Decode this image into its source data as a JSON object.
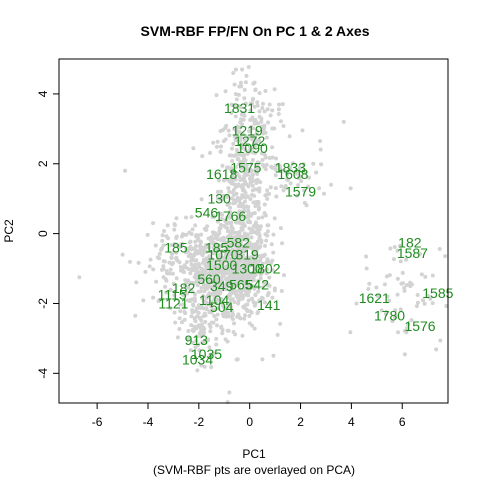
{
  "chart_data": {
    "type": "scatter",
    "title": "SVM-RBF FP/FN On PC 1 & 2 Axes",
    "xlabel": "PC1",
    "subtitle": "(SVM-RBF pts are overlayed on PCA)",
    "ylabel": "PC2",
    "xlim": [
      -7.5,
      7.8
    ],
    "ylim": [
      -4.85,
      5.0
    ],
    "xticks": [
      -6,
      -4,
      -2,
      0,
      2,
      4,
      6
    ],
    "yticks": [
      -4,
      -2,
      0,
      2,
      4
    ],
    "colors": {
      "background_points": "#d3d3d3",
      "labels": "#1e8c1e"
    },
    "labeled_points": [
      {
        "label": "1831",
        "x": -0.4,
        "y": 3.6
      },
      {
        "label": "1219",
        "x": -0.1,
        "y": 2.95
      },
      {
        "label": "1272",
        "x": 0.0,
        "y": 2.65
      },
      {
        "label": "1090",
        "x": 0.1,
        "y": 2.45
      },
      {
        "label": "1575",
        "x": -0.15,
        "y": 1.9
      },
      {
        "label": "1618",
        "x": -1.1,
        "y": 1.7
      },
      {
        "label": "1833",
        "x": 1.6,
        "y": 1.9
      },
      {
        "label": "1608",
        "x": 1.7,
        "y": 1.7
      },
      {
        "label": "1579",
        "x": 2.0,
        "y": 1.2
      },
      {
        "label": "130",
        "x": -1.2,
        "y": 1.0
      },
      {
        "label": "546",
        "x": -1.7,
        "y": 0.6
      },
      {
        "label": "1766",
        "x": -0.75,
        "y": 0.5
      },
      {
        "label": "582",
        "x": -0.45,
        "y": -0.25
      },
      {
        "label": "185",
        "x": -2.9,
        "y": -0.4
      },
      {
        "label": "185",
        "x": -1.3,
        "y": -0.4
      },
      {
        "label": "1070",
        "x": -1.05,
        "y": -0.6
      },
      {
        "label": "319",
        "x": -0.1,
        "y": -0.6
      },
      {
        "label": "1500",
        "x": -1.1,
        "y": -0.9
      },
      {
        "label": "1300",
        "x": -0.1,
        "y": -1.0
      },
      {
        "label": "1802",
        "x": 0.6,
        "y": -1.0
      },
      {
        "label": "560",
        "x": -1.6,
        "y": -1.3
      },
      {
        "label": "349",
        "x": -1.1,
        "y": -1.5
      },
      {
        "label": "565",
        "x": -0.35,
        "y": -1.45
      },
      {
        "label": "542",
        "x": 0.3,
        "y": -1.45
      },
      {
        "label": "182",
        "x": -2.6,
        "y": -1.55
      },
      {
        "label": "1115",
        "x": -3.05,
        "y": -1.75
      },
      {
        "label": "1121",
        "x": -3.0,
        "y": -2.0
      },
      {
        "label": "1104",
        "x": -1.4,
        "y": -1.9
      },
      {
        "label": "504",
        "x": -1.1,
        "y": -2.1
      },
      {
        "label": "141",
        "x": 0.75,
        "y": -2.05
      },
      {
        "label": "913",
        "x": -2.1,
        "y": -3.05
      },
      {
        "label": "1035",
        "x": -1.7,
        "y": -3.45
      },
      {
        "label": "1034",
        "x": -2.05,
        "y": -3.6
      },
      {
        "label": "182",
        "x": 6.3,
        "y": -0.25
      },
      {
        "label": "1587",
        "x": 6.4,
        "y": -0.55
      },
      {
        "label": "1585",
        "x": 7.4,
        "y": -1.7
      },
      {
        "label": "1621",
        "x": 4.9,
        "y": -1.85
      },
      {
        "label": "1780",
        "x": 5.5,
        "y": -2.35
      },
      {
        "label": "1576",
        "x": 6.7,
        "y": -2.65
      }
    ],
    "background_clusters": [
      {
        "cx": -0.3,
        "cy": 0.6,
        "sx": 0.55,
        "sy": 1.6,
        "n": 480
      },
      {
        "cx": -1.6,
        "cy": -1.1,
        "sx": 0.8,
        "sy": 0.7,
        "n": 420
      },
      {
        "cx": -0.3,
        "cy": -1.0,
        "sx": 0.6,
        "sy": 0.6,
        "n": 300
      },
      {
        "cx": -1.9,
        "cy": -2.7,
        "sx": 0.35,
        "sy": 0.45,
        "n": 80
      },
      {
        "cx": 1.3,
        "cy": 1.5,
        "sx": 0.9,
        "sy": 0.5,
        "n": 60
      },
      {
        "cx": 0.2,
        "cy": 3.2,
        "sx": 0.5,
        "sy": 0.6,
        "n": 90
      },
      {
        "cx": 6.0,
        "cy": -1.6,
        "sx": 0.8,
        "sy": 0.8,
        "n": 60
      },
      {
        "cx": -3.3,
        "cy": -0.8,
        "sx": 0.6,
        "sy": 0.6,
        "n": 60
      }
    ],
    "outlier_points": [
      {
        "x": -6.7,
        "y": -1.25
      },
      {
        "x": -4.5,
        "y": -2.35
      },
      {
        "x": -4.9,
        "y": 1.8
      },
      {
        "x": -3.8,
        "y": 0.3
      },
      {
        "x": -0.3,
        "y": 4.7
      },
      {
        "x": 3.7,
        "y": 3.2
      },
      {
        "x": 4.6,
        "y": -1.0
      },
      {
        "x": 7.2,
        "y": -1.2
      },
      {
        "x": -0.8,
        "y": -4.55
      },
      {
        "x": 0.5,
        "y": -3.6
      },
      {
        "x": 1.1,
        "y": -2.9
      },
      {
        "x": 2.5,
        "y": 2.0
      },
      {
        "x": 3.2,
        "y": 1.4
      },
      {
        "x": 4.2,
        "y": -2.0
      },
      {
        "x": -5.0,
        "y": -0.6
      }
    ]
  }
}
